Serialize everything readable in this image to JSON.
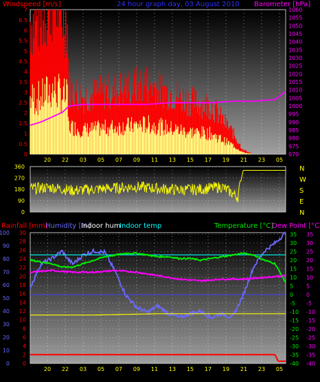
{
  "header": {
    "left": "Windspeed [m/s]",
    "center": "24 hour graph day, 03 August 2010",
    "right": "Barometer [hPa]"
  },
  "bottom_header": {
    "rain": "Rainfall [mm]",
    "hum": "Humidity [%]",
    "inhum": "Indoor hum",
    "intemp": "Indoor temp",
    "temp": "Temperature [°C]",
    "dew": "Dew Point [°C]"
  },
  "colors": {
    "windspeed": "#ff0000",
    "windgust_fill": "#ffff80",
    "barometer": "#ff00ff",
    "wind_direction": "#ffff00",
    "rainfall": "#ff0000",
    "humidity": "#6a6aff",
    "indoor_humidity": "#ffff00",
    "indoor_temp": "#00ffff",
    "temperature": "#00ee00",
    "dew_point": "#ff00ff",
    "zero_line": "#4040ff"
  },
  "chart_data": [
    {
      "type": "area",
      "panel": "top",
      "x_ticks": [
        "20",
        "22",
        "03",
        "05",
        "07",
        "09",
        "11",
        "13",
        "15",
        "17",
        "19",
        "21",
        "23",
        "05"
      ],
      "y_left_ticks": [
        "0",
        "0.5",
        "1",
        "1.5",
        "2",
        "2.5",
        "3",
        "3.5",
        "4",
        "4.5",
        "5",
        "5.5",
        "6",
        "6.5",
        "7"
      ],
      "y_right_ticks": [
        "970",
        "975",
        "980",
        "985",
        "990",
        "995",
        "1000",
        "1005",
        "1010",
        "1015",
        "1020",
        "1025",
        "1030",
        "1035",
        "1040",
        "1045",
        "1050",
        "1055",
        "1060"
      ],
      "ylim_left": [
        0,
        7
      ],
      "ylim_right": [
        970,
        1060
      ],
      "series": [
        {
          "name": "Windspeed [m/s]",
          "x": [
            0,
            1,
            2,
            3,
            3.5,
            3.6,
            5,
            7,
            9,
            11,
            13,
            15,
            17,
            19,
            19.5,
            20,
            21,
            23
          ],
          "values": [
            3.0,
            3.0,
            3.5,
            3.2,
            3.0,
            1.5,
            1.3,
            1.4,
            1.5,
            1.6,
            1.4,
            1.2,
            1.1,
            0.5,
            0.3,
            0.1,
            0,
            0
          ]
        },
        {
          "name": "Barometer [hPa]",
          "x": [
            0,
            1,
            2,
            3,
            3.5,
            3.6,
            5,
            7,
            9,
            11,
            13,
            15,
            17,
            19,
            21,
            23,
            24
          ],
          "values": [
            988,
            990,
            993,
            996,
            999,
            1000,
            1001,
            1001,
            1001,
            1001,
            1002,
            1002,
            1002,
            1003,
            1003,
            1004,
            1009
          ]
        }
      ]
    },
    {
      "type": "line",
      "panel": "wind-direction",
      "y_ticks": [
        "0",
        "90",
        "180",
        "270",
        "360"
      ],
      "ylim": [
        0,
        360
      ],
      "compass": [
        "N",
        "W",
        "S",
        "E",
        "N"
      ],
      "x": [
        0,
        2,
        4,
        6,
        8,
        10,
        12,
        14,
        16,
        18,
        19.5,
        20,
        21,
        22,
        23,
        24
      ],
      "values": [
        185,
        195,
        170,
        180,
        190,
        200,
        185,
        175,
        180,
        200,
        120,
        330,
        330,
        330,
        330,
        330
      ]
    },
    {
      "type": "line",
      "panel": "bottom",
      "x_ticks": [
        "20",
        "22",
        "03",
        "05",
        "07",
        "09",
        "11",
        "13",
        "15",
        "17",
        "19",
        "21",
        "23",
        "05"
      ],
      "y_humidity_ticks": [
        "0",
        "10",
        "20",
        "30",
        "40",
        "50",
        "60",
        "70",
        "80",
        "90",
        "100"
      ],
      "y_rain_ticks": [
        "0",
        "2",
        "4",
        "6",
        "8",
        "10",
        "12",
        "14",
        "16",
        "18",
        "20",
        "22",
        "24",
        "26",
        "28",
        "30"
      ],
      "y_temp_ticks": [
        "-40",
        "-35",
        "-30",
        "-25",
        "-20",
        "-15",
        "-10",
        "-5",
        "0",
        "5",
        "10",
        "15",
        "20",
        "25",
        "30",
        "35"
      ],
      "ylim_humidity": [
        0,
        100
      ],
      "ylim_temp": [
        -40,
        36
      ],
      "series": [
        {
          "name": "Rainfall [mm]",
          "x": [
            0,
            23,
            23.3,
            24
          ],
          "values": [
            2,
            2,
            0.5,
            0.5
          ]
        },
        {
          "name": "Humidity [%]",
          "x": [
            0,
            1,
            2,
            3,
            3.5,
            4,
            5,
            6,
            7,
            8,
            9,
            10,
            11,
            12,
            13,
            14,
            15,
            16,
            17,
            18,
            19,
            20,
            21,
            22,
            23,
            24
          ],
          "values": [
            58,
            76,
            80,
            86,
            80,
            76,
            83,
            86,
            85,
            70,
            52,
            43,
            39,
            44,
            38,
            35,
            38,
            40,
            35,
            38,
            35,
            52,
            74,
            86,
            92,
            100
          ]
        },
        {
          "name": "Indoor hum",
          "x": [
            0,
            6,
            12,
            18,
            24
          ],
          "values": [
            37,
            37,
            38,
            38,
            38
          ]
        },
        {
          "name": "Indoor temp",
          "x": [
            0,
            24
          ],
          "values": [
            83,
            83
          ]
        },
        {
          "name": "Temperature [°C]",
          "x": [
            0,
            1,
            2,
            3,
            4,
            5,
            6,
            7,
            8,
            9,
            10,
            11,
            12,
            13,
            14,
            15,
            16,
            17,
            18,
            19,
            20,
            21,
            22,
            23,
            24
          ],
          "values": [
            20,
            19,
            18,
            16,
            16,
            18,
            20,
            22,
            23,
            24,
            24,
            23,
            22,
            22,
            21,
            21,
            20,
            21,
            22,
            23,
            24,
            23,
            20,
            18,
            7
          ]
        },
        {
          "name": "Dew Point [°C]",
          "x": [
            0,
            2,
            4,
            6,
            8,
            10,
            12,
            14,
            16,
            18,
            20,
            22,
            24
          ],
          "values": [
            13,
            14,
            13,
            13,
            14,
            13,
            11,
            9,
            8,
            9,
            9,
            10,
            11
          ]
        }
      ]
    }
  ]
}
